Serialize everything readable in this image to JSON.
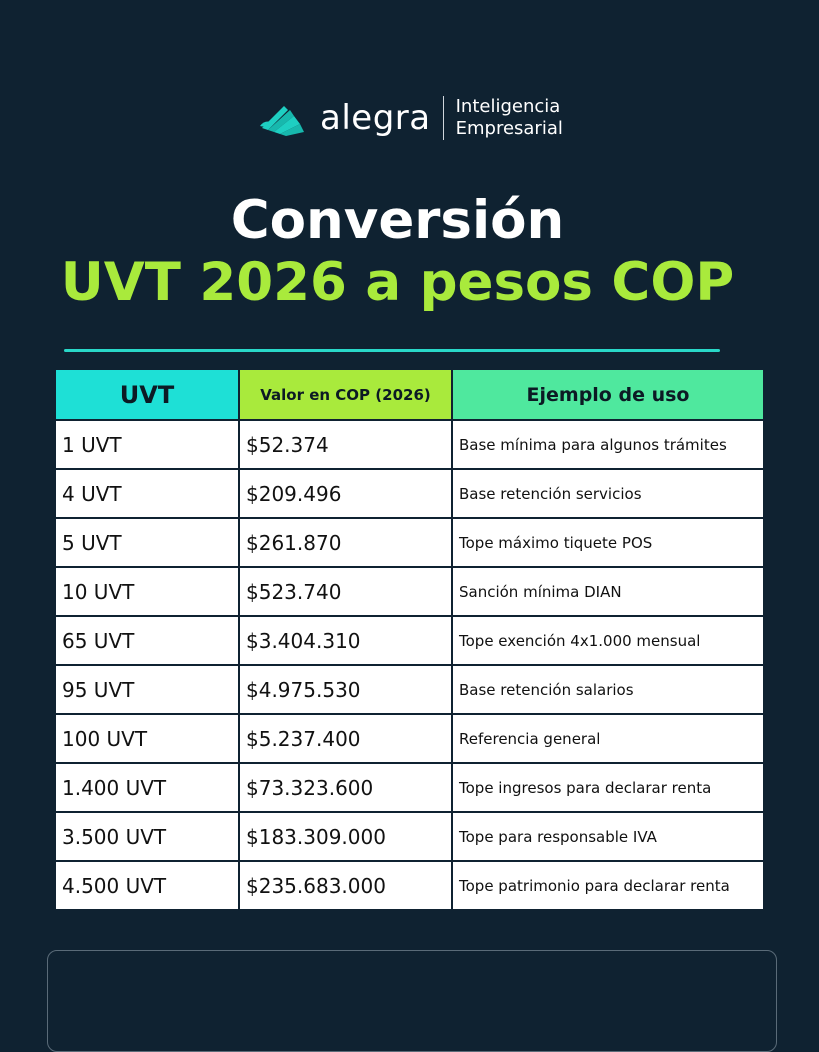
{
  "brand": {
    "name": "alegra",
    "tagline_line1": "Inteligencia",
    "tagline_line2": "Empresarial",
    "logo_icon": "alegra-fan-logo-icon",
    "logo_color": "#1ecfc2"
  },
  "title": {
    "line1": "Conversión",
    "line2": "UVT 2026 a pesos COP"
  },
  "colors": {
    "background": "#0f2231",
    "accent_green": "#a9ea3c",
    "accent_teal": "#1ee0d6",
    "accent_mint": "#4fe89e"
  },
  "table": {
    "headers": [
      "UVT",
      "Valor en COP (2026)",
      "Ejemplo de uso"
    ],
    "rows": [
      {
        "uvt": "1 UVT",
        "cop": "$52.374",
        "uso": "Base mínima para algunos trámites"
      },
      {
        "uvt": "4 UVT",
        "cop": "$209.496",
        "uso": "Base retención servicios"
      },
      {
        "uvt": "5 UVT",
        "cop": "$261.870",
        "uso": "Tope máximo tiquete POS"
      },
      {
        "uvt": "10 UVT",
        "cop": "$523.740",
        "uso": "Sanción mínima DIAN"
      },
      {
        "uvt": "65 UVT",
        "cop": "$3.404.310",
        "uso": "Tope exención 4x1.000 mensual"
      },
      {
        "uvt": "95 UVT",
        "cop": "$4.975.530",
        "uso": "Base retención salarios"
      },
      {
        "uvt": "100 UVT",
        "cop": "$5.237.400",
        "uso": "Referencia general"
      },
      {
        "uvt": "1.400 UVT",
        "cop": "$73.323.600",
        "uso": "Tope ingresos para declarar renta"
      },
      {
        "uvt": "3.500 UVT",
        "cop": "$183.309.000",
        "uso": "Tope para responsable IVA"
      },
      {
        "uvt": "4.500 UVT",
        "cop": "$235.683.000",
        "uso": "Tope patrimonio para declarar renta"
      }
    ]
  }
}
